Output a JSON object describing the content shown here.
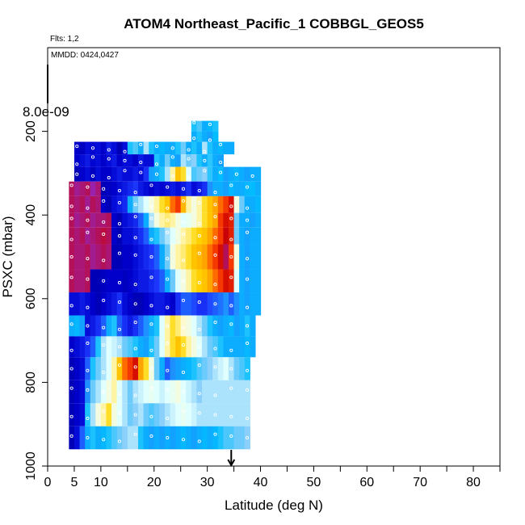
{
  "chart_data": {
    "type": "heatmap",
    "title": "ATOM4 Northeast_Pacific_1 COBBGL_GEOS5",
    "flights_label": "Flts: 1,2",
    "dates_label": "MMDD: 0424,0427",
    "scale_label": "8.0e-09",
    "xlabel": "Latitude (deg N)",
    "ylabel": "PSXC (mbar)",
    "xlim": [
      0,
      85
    ],
    "ylim": [
      1000,
      0
    ],
    "x_ticks": [
      0,
      5,
      10,
      20,
      30,
      40,
      50,
      60,
      70,
      80
    ],
    "x_minor_ticks": [
      15,
      25,
      35,
      45,
      55,
      65,
      75,
      85
    ],
    "y_ticks": [
      200,
      400,
      600,
      800,
      1000
    ],
    "marker_latitude": 34.5,
    "colormap": [
      "#000080",
      "#0000cd",
      "#1e3cff",
      "#1e90ff",
      "#00bfff",
      "#87cefa",
      "#e0ffff",
      "#fffacd",
      "#ffd700",
      "#ffa500",
      "#ff4500",
      "#cc0000",
      "#8a2be2"
    ],
    "layers": [
      {
        "p_top": 175,
        "p_bot": 200,
        "x0": 27,
        "x1": 32,
        "cells": [
          0.35,
          0.38,
          0.3,
          0.32,
          0.35
        ]
      },
      {
        "p_top": 200,
        "p_bot": 225,
        "x0": 27,
        "x1": 32,
        "cells": [
          0.3,
          0.35,
          0.3,
          0.28,
          0.33
        ]
      },
      {
        "p_top": 225,
        "p_bot": 255,
        "x0": 5,
        "x1": 35,
        "cells": [
          0.08,
          0.07,
          0.1,
          0.09,
          0.1,
          0.08,
          0.12,
          0.1,
          0.06,
          0.1,
          0.35,
          0.38,
          0.3,
          0.45,
          0.35,
          0.3,
          0.32,
          0.3,
          0.3,
          0.35,
          0.4,
          0.3,
          0.35,
          0.3,
          0.45,
          0.35,
          0.3,
          0.32,
          0.3,
          0.3
        ]
      },
      {
        "p_top": 255,
        "p_bot": 285,
        "x0": 5,
        "x1": 33,
        "cells": [
          0.08,
          0.1,
          0.12,
          0.09,
          0.1,
          0.08,
          0.1,
          0.12,
          0.08,
          0.1,
          0.1,
          0.08,
          0.12,
          0.1,
          0.1,
          0.35,
          0.3,
          0.4,
          0.3,
          0.28,
          0.45,
          0.4,
          0.42,
          0.35,
          0.3,
          0.36,
          0.3,
          0.28
        ]
      },
      {
        "p_top": 285,
        "p_bot": 320,
        "x0": 5,
        "x1": 40,
        "cells": [
          0.06,
          0.08,
          0.1,
          0.07,
          0.1,
          0.08,
          0.08,
          0.1,
          0.12,
          0.1,
          0.1,
          0.12,
          0.1,
          0.15,
          0.28,
          0.3,
          0.35,
          0.45,
          0.6,
          0.7,
          0.65,
          0.5,
          0.38,
          0.4,
          0.42,
          0.36,
          0.3,
          0.33,
          0.28,
          0.3,
          0.32,
          0.3,
          0.28,
          0.3,
          0.3
        ]
      },
      {
        "p_top": 320,
        "p_bot": 355,
        "x0": 4,
        "x1": 40,
        "cells": [
          0.95,
          0.97,
          0.96,
          0.95,
          0.98,
          0.96,
          0.06,
          0.07,
          0.08,
          0.1,
          0.12,
          0.14,
          0.16,
          0.12,
          0.1,
          0.08,
          0.1,
          0.09,
          0.1,
          0.12,
          0.1,
          0.12,
          0.15,
          0.1,
          0.12,
          0.15,
          0.25,
          0.3,
          0.3,
          0.28,
          0.32,
          0.3,
          0.3,
          0.32,
          0.33,
          0.3
        ]
      },
      {
        "p_top": 355,
        "p_bot": 395,
        "x0": 4,
        "x1": 40,
        "cells": [
          0.95,
          0.96,
          0.95,
          0.97,
          0.95,
          0.96,
          0.08,
          0.06,
          0.1,
          0.12,
          0.14,
          0.3,
          0.4,
          0.45,
          0.5,
          0.55,
          0.6,
          0.65,
          0.7,
          0.8,
          0.85,
          0.72,
          0.6,
          0.55,
          0.6,
          0.65,
          0.7,
          0.75,
          0.8,
          0.85,
          0.9,
          0.55,
          0.4,
          0.3,
          0.3,
          0.32
        ]
      },
      {
        "p_top": 395,
        "p_bot": 430,
        "x0": 4,
        "x1": 40,
        "cells": [
          0.95,
          0.97,
          0.96,
          0.95,
          0.97,
          0.96,
          0.96,
          0.95,
          0.08,
          0.06,
          0.1,
          0.12,
          0.14,
          0.2,
          0.3,
          0.45,
          0.55,
          0.6,
          0.62,
          0.6,
          0.55,
          0.5,
          0.52,
          0.55,
          0.6,
          0.65,
          0.7,
          0.75,
          0.85,
          0.9,
          0.88,
          0.4,
          0.3,
          0.3,
          0.28,
          0.3
        ]
      },
      {
        "p_top": 430,
        "p_bot": 470,
        "x0": 4,
        "x1": 40,
        "cells": [
          0.95,
          0.96,
          0.95,
          0.97,
          0.96,
          0.95,
          0.94,
          0.95,
          0.08,
          0.06,
          0.1,
          0.1,
          0.12,
          0.15,
          0.2,
          0.3,
          0.35,
          0.4,
          0.45,
          0.5,
          0.55,
          0.6,
          0.62,
          0.65,
          0.68,
          0.7,
          0.75,
          0.8,
          0.85,
          0.92,
          0.88,
          0.4,
          0.3,
          0.28,
          0.3,
          0.3
        ]
      },
      {
        "p_top": 470,
        "p_bot": 530,
        "x0": 4,
        "x1": 40,
        "cells": [
          0.95,
          0.96,
          0.96,
          0.95,
          0.97,
          0.96,
          0.95,
          0.96,
          0.06,
          0.06,
          0.08,
          0.08,
          0.1,
          0.12,
          0.14,
          0.16,
          0.2,
          0.3,
          0.4,
          0.55,
          0.6,
          0.62,
          0.65,
          0.7,
          0.72,
          0.75,
          0.8,
          0.85,
          0.9,
          0.95,
          0.85,
          0.55,
          0.3,
          0.28,
          0.3,
          0.3
        ]
      },
      {
        "p_top": 530,
        "p_bot": 585,
        "x0": 4,
        "x1": 40,
        "cells": [
          0.95,
          0.96,
          0.96,
          0.95,
          0.06,
          0.06,
          0.07,
          0.08,
          0.08,
          0.08,
          0.07,
          0.08,
          0.1,
          0.12,
          0.12,
          0.14,
          0.16,
          0.2,
          0.3,
          0.4,
          0.5,
          0.55,
          0.6,
          0.65,
          0.68,
          0.7,
          0.75,
          0.8,
          0.85,
          0.9,
          0.88,
          0.5,
          0.3,
          0.28,
          0.3,
          0.3
        ]
      },
      {
        "p_top": 585,
        "p_bot": 640,
        "x0": 4,
        "x1": 40,
        "cells": [
          0.1,
          0.1,
          0.12,
          0.1,
          0.08,
          0.06,
          0.08,
          0.1,
          0.12,
          0.15,
          0.1,
          0.08,
          0.06,
          0.06,
          0.08,
          0.1,
          0.12,
          0.12,
          0.1,
          0.08,
          0.15,
          0.2,
          0.2,
          0.18,
          0.15,
          0.15,
          0.18,
          0.2,
          0.22,
          0.25,
          0.2,
          0.25,
          0.3,
          0.28,
          0.3,
          0.3
        ]
      },
      {
        "p_top": 640,
        "p_bot": 690,
        "x0": 4,
        "x1": 39,
        "cells": [
          0.3,
          0.32,
          0.28,
          0.1,
          0.12,
          0.15,
          0.2,
          0.3,
          0.35,
          0.2,
          0.15,
          0.12,
          0.15,
          0.2,
          0.25,
          0.3,
          0.35,
          0.5,
          0.6,
          0.65,
          0.62,
          0.58,
          0.55,
          0.5,
          0.45,
          0.4,
          0.35,
          0.3,
          0.28,
          0.3,
          0.32,
          0.28,
          0.3,
          0.35,
          0.3
        ]
      },
      {
        "p_top": 690,
        "p_bot": 740,
        "x0": 4,
        "x1": 39,
        "cells": [
          0.08,
          0.1,
          0.12,
          0.15,
          0.2,
          0.35,
          0.45,
          0.5,
          0.48,
          0.45,
          0.4,
          0.38,
          0.35,
          0.3,
          0.28,
          0.35,
          0.4,
          0.5,
          0.6,
          0.65,
          0.7,
          0.65,
          0.6,
          0.55,
          0.5,
          0.45,
          0.4,
          0.38,
          0.35,
          0.3,
          0.3,
          0.3,
          0.3,
          0.32,
          0.3
        ]
      },
      {
        "p_top": 740,
        "p_bot": 795,
        "x0": 4,
        "x1": 38,
        "cells": [
          0.06,
          0.08,
          0.1,
          0.2,
          0.35,
          0.4,
          0.45,
          0.5,
          0.6,
          0.7,
          0.8,
          0.85,
          0.9,
          0.75,
          0.65,
          0.55,
          0.4,
          0.3,
          0.2,
          0.25,
          0.28,
          0.3,
          0.32,
          0.35,
          0.38,
          0.4,
          0.42,
          0.45,
          0.48,
          0.5,
          0.45,
          0.4,
          0.38,
          0.35
        ]
      },
      {
        "p_top": 795,
        "p_bot": 850,
        "x0": 4,
        "x1": 38,
        "cells": [
          0.06,
          0.08,
          0.1,
          0.25,
          0.4,
          0.45,
          0.5,
          0.55,
          0.6,
          0.5,
          0.45,
          0.4,
          0.45,
          0.48,
          0.5,
          0.52,
          0.5,
          0.48,
          0.5,
          0.52,
          0.55,
          0.5,
          0.48,
          0.45,
          0.42,
          0.45,
          0.45,
          0.45,
          0.45,
          0.45,
          0.45,
          0.45,
          0.45,
          0.45
        ]
      },
      {
        "p_top": 850,
        "p_bot": 905,
        "x0": 4,
        "x1": 38,
        "cells": [
          0.06,
          0.08,
          0.1,
          0.35,
          0.45,
          0.55,
          0.6,
          0.65,
          0.55,
          0.5,
          0.45,
          0.4,
          0.42,
          0.45,
          0.4,
          0.38,
          0.4,
          0.42,
          0.45,
          0.48,
          0.5,
          0.52,
          0.5,
          0.48,
          0.45,
          0.45,
          0.45,
          0.45,
          0.45,
          0.45,
          0.45,
          0.45,
          0.45,
          0.45
        ]
      },
      {
        "p_top": 905,
        "p_bot": 960,
        "x0": 4,
        "x1": 38,
        "cells": [
          0.06,
          0.1,
          0.2,
          0.3,
          0.35,
          0.3,
          0.32,
          0.35,
          0.38,
          0.4,
          0.42,
          0.45,
          0.45,
          0.35,
          0.3,
          0.28,
          0.3,
          0.28,
          0.3,
          0.28,
          0.3,
          0.32,
          0.3,
          0.28,
          0.3,
          0.32,
          0.3,
          0.32,
          0.35,
          0.38,
          0.38,
          0.4,
          0.4,
          0.42
        ]
      }
    ]
  }
}
